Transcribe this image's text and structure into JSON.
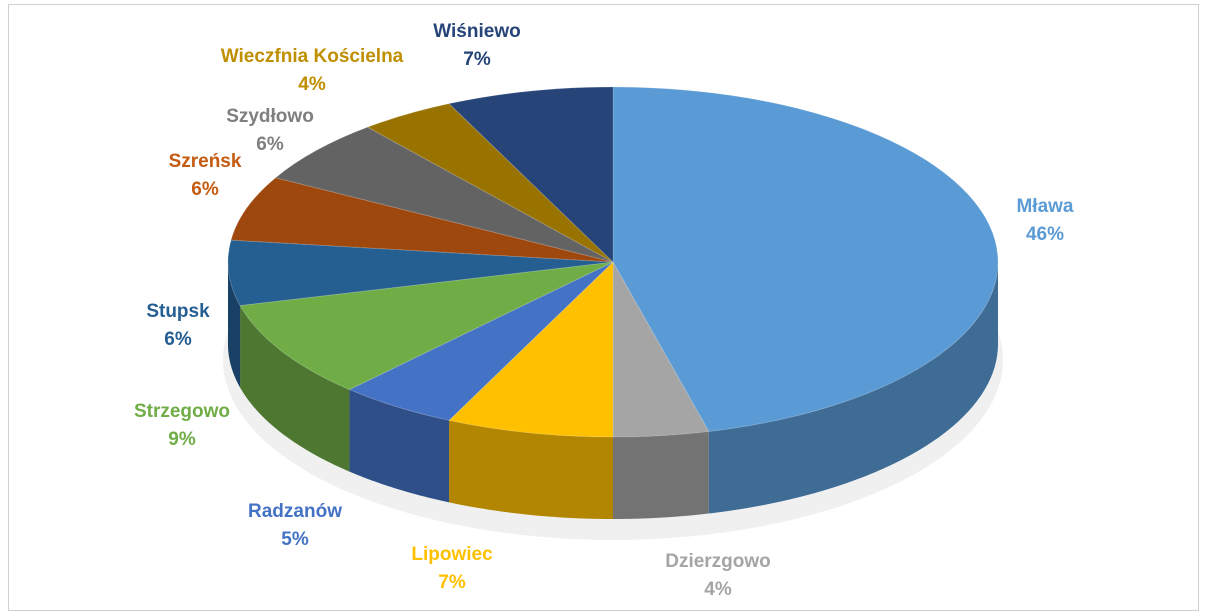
{
  "chart_data": {
    "type": "pie",
    "categories": [
      "Mława",
      "Dzierzgowo",
      "Lipowiec",
      "Radzanów",
      "Strzegowo",
      "Stupsk",
      "Szreńsk",
      "Szydłowo",
      "Wieczfnia Kościelna",
      "Wiśniewo"
    ],
    "values": [
      46,
      4,
      7,
      5,
      9,
      6,
      6,
      6,
      4,
      7
    ],
    "value_labels": [
      "46%",
      "4%",
      "7%",
      "5%",
      "9%",
      "6%",
      "6%",
      "6%",
      "4%",
      "7%"
    ],
    "colors": [
      "#5b9bd5",
      "#a5a5a5",
      "#ffc000",
      "#4472c4",
      "#70ad47",
      "#255e91",
      "#9e480e",
      "#636363",
      "#997300",
      "#264478"
    ]
  }
}
